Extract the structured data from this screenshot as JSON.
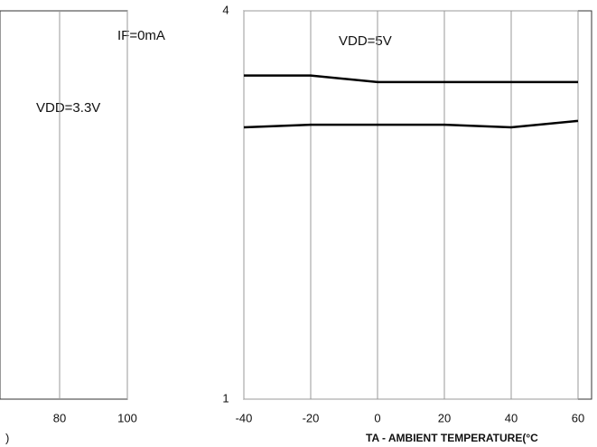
{
  "chart_data": [
    {
      "type": "line",
      "xlabel": ")",
      "xlim": [
        62.4,
        100
      ],
      "xticks": [
        80,
        100
      ],
      "ylim": [
        1,
        4
      ],
      "grid": true,
      "series": []
    },
    {
      "type": "line",
      "xlabel": "TA - AMBIENT TEMPERATURE(°C",
      "annotations": [
        "IF=0mA",
        "VDD=5V",
        "VDD=3.3V"
      ],
      "x": [
        -40,
        -20,
        0,
        20,
        40,
        60
      ],
      "xlim": [
        -40,
        60
      ],
      "xticks": [
        -40,
        -20,
        0,
        20,
        40,
        60
      ],
      "ylim": [
        1,
        4
      ],
      "yticks": [
        1,
        4
      ],
      "grid": true,
      "series": [
        {
          "name": "VDD=5V",
          "color": "#000000",
          "values": [
            3.5,
            3.5,
            3.45,
            3.45,
            3.45,
            3.45
          ]
        },
        {
          "name": "VDD=3.3V",
          "color": "#000000",
          "values": [
            3.1,
            3.12,
            3.12,
            3.12,
            3.1,
            3.15
          ]
        }
      ]
    }
  ]
}
